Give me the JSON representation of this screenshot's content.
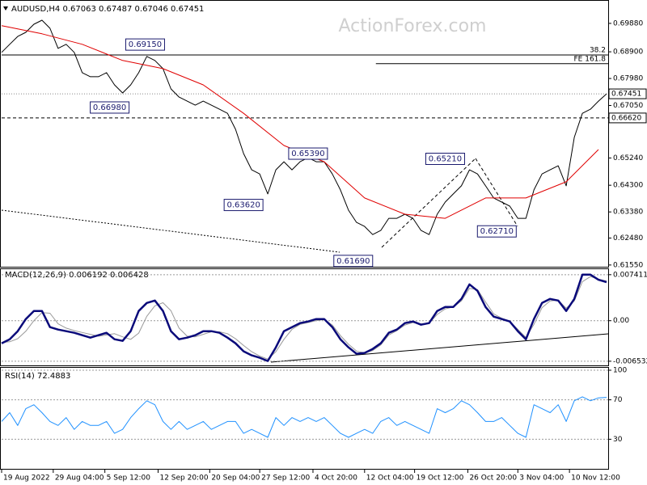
{
  "chart_data": [
    {
      "type": "line",
      "title": "AUDUSD,H4  0.67063 0.67487 0.67046 0.67451",
      "watermark": "ActionForex.com",
      "x": [
        0,
        5,
        10,
        15,
        20,
        25,
        30,
        35,
        40,
        45,
        50,
        55,
        60,
        65,
        70,
        75,
        80,
        85,
        90,
        95,
        100,
        105,
        110,
        115,
        120,
        125,
        130,
        135,
        140,
        145,
        150,
        155,
        160,
        165,
        170,
        175,
        180,
        185,
        190,
        195,
        200,
        205,
        210,
        215,
        220,
        225,
        230,
        235,
        240,
        245,
        250,
        255,
        260,
        265,
        270,
        275,
        280,
        285,
        290,
        295,
        300,
        305,
        310,
        315,
        320,
        325,
        330,
        335,
        340,
        345,
        350,
        355,
        360,
        365,
        370,
        375
      ],
      "xlim": [
        0,
        376
      ],
      "ylim": [
        0.6149,
        0.7063
      ],
      "grid": false,
      "yticks": [
        {
          "value": 0.6988,
          "label": "0.69880"
        },
        {
          "value": 0.689,
          "label": "0.68900"
        },
        {
          "value": 0.6798,
          "label": "0.67980"
        },
        {
          "value": 0.6705,
          "label": "0.67050"
        },
        {
          "value": 0.6524,
          "label": "0.65240"
        },
        {
          "value": 0.643,
          "label": "0.64300"
        },
        {
          "value": 0.6338,
          "label": "0.63380"
        },
        {
          "value": 0.6248,
          "label": "0.62480"
        },
        {
          "value": 0.6155,
          "label": "0.61550"
        }
      ],
      "series": [
        {
          "color": "#000000",
          "width": 1,
          "values": [
            0.6888,
            0.6916,
            0.6943,
            0.6957,
            0.6985,
            0.6999,
            0.6971,
            0.6902,
            0.6916,
            0.6888,
            0.6818,
            0.6804,
            0.6804,
            0.6818,
            0.6776,
            0.6748,
            0.6776,
            0.6818,
            0.6874,
            0.686,
            0.6832,
            0.6762,
            0.6734,
            0.672,
            0.6706,
            0.672,
            0.6706,
            0.6692,
            0.6678,
            0.6623,
            0.6539,
            0.6483,
            0.6469,
            0.64,
            0.6483,
            0.6511,
            0.6483,
            0.6511,
            0.6525,
            0.6511,
            0.6511,
            0.6469,
            0.6414,
            0.6344,
            0.6302,
            0.6288,
            0.626,
            0.6274,
            0.6316,
            0.6316,
            0.633,
            0.6316,
            0.6274,
            0.626,
            0.633,
            0.6372,
            0.64,
            0.6428,
            0.6483,
            0.6469,
            0.6428,
            0.6386,
            0.6372,
            0.6358,
            0.6316,
            0.6316,
            0.6414,
            0.6469,
            0.6483,
            0.6497,
            0.6428,
            0.6595,
            0.6678,
            0.6692,
            0.672,
            0.6745
          ]
        },
        {
          "color": "#e00000",
          "width": 1,
          "x": [
            0,
            25,
            50,
            75,
            100,
            125,
            150,
            175,
            200,
            225,
            250,
            275,
            300,
            325,
            350,
            370
          ],
          "values": [
            0.698,
            0.6952,
            0.6916,
            0.686,
            0.6832,
            0.6776,
            0.6678,
            0.6567,
            0.6511,
            0.6386,
            0.633,
            0.6316,
            0.6386,
            0.6386,
            0.6442,
            0.6553
          ]
        }
      ],
      "levels": [
        {
          "value": 0.6879,
          "label": "38.2",
          "style": "solid"
        },
        {
          "value": 0.6849,
          "label": "FE 161.8",
          "style": "solid",
          "x_start": 232
        },
        {
          "value": 0.67451,
          "label": "0.67451",
          "style": "dotted"
        },
        {
          "value": 0.6662,
          "label": "0.66620",
          "style": "dashed"
        }
      ],
      "annotations": [
        {
          "x": 101,
          "value": 0.6915,
          "label": "0.69150"
        },
        {
          "x": 79,
          "value": 0.6698,
          "label": "0.66980"
        },
        {
          "x": 202,
          "value": 0.6539,
          "label": "0.65390"
        },
        {
          "x": 162,
          "value": 0.6362,
          "label": "0.63620"
        },
        {
          "x": 230,
          "value": 0.6169,
          "label": "0.61690"
        },
        {
          "x": 287,
          "value": 0.6521,
          "label": "0.65210"
        },
        {
          "x": 319,
          "value": 0.6271,
          "label": "0.62710"
        }
      ]
    },
    {
      "type": "line",
      "title": "MACD(12,26,9) 0.006192 0.006428",
      "x": [
        0,
        5,
        10,
        15,
        20,
        25,
        30,
        35,
        40,
        45,
        50,
        55,
        60,
        65,
        70,
        75,
        80,
        85,
        90,
        95,
        100,
        105,
        110,
        115,
        120,
        125,
        130,
        135,
        140,
        145,
        150,
        155,
        160,
        165,
        170,
        175,
        180,
        185,
        190,
        195,
        200,
        205,
        210,
        215,
        220,
        225,
        230,
        235,
        240,
        245,
        250,
        255,
        260,
        265,
        270,
        275,
        280,
        285,
        290,
        295,
        300,
        305,
        310,
        315,
        320,
        325,
        330,
        335,
        340,
        345,
        350,
        355,
        360,
        365,
        370,
        375
      ],
      "xlim": [
        0,
        376
      ],
      "ylim": [
        -0.0072,
        0.0083
      ],
      "grid": true,
      "yticks": [
        0.007411,
        {
          "value": 0,
          "label": "0.00"
        },
        -0.006532
      ],
      "series": [
        {
          "color": "#999999",
          "width": 1,
          "values": [
            -0.0035,
            -0.0034,
            -0.0029,
            -0.0017,
            0.0,
            0.0013,
            0.0012,
            -0.0005,
            -0.0012,
            -0.0016,
            -0.0019,
            -0.0022,
            -0.0025,
            -0.0023,
            -0.0021,
            -0.0026,
            -0.003,
            -0.002,
            0.0007,
            0.0024,
            0.0029,
            0.0016,
            -0.0012,
            -0.0025,
            -0.0026,
            -0.0022,
            -0.0018,
            -0.0018,
            -0.0021,
            -0.0029,
            -0.004,
            -0.005,
            -0.0057,
            -0.0062,
            -0.005,
            -0.003,
            -0.0014,
            -0.0006,
            -0.0003,
            0.0,
            0.0002,
            -0.0007,
            -0.0024,
            -0.0038,
            -0.0049,
            -0.0052,
            -0.0048,
            -0.0039,
            -0.0023,
            -0.0016,
            -0.0007,
            -0.0003,
            -0.0005,
            -0.0004,
            0.001,
            0.0019,
            0.0022,
            0.0032,
            0.0052,
            0.005,
            0.003,
            0.0011,
            0.0004,
            -0.0001,
            -0.0014,
            -0.0027,
            -0.0006,
            0.0021,
            0.0032,
            0.0033,
            0.002,
            0.0032,
            0.0063,
            0.0071,
            0.0067,
            0.0064
          ]
        },
        {
          "color": "#0a0a7a",
          "width": 2.5,
          "values": [
            -0.00364,
            -0.00299,
            -0.00169,
            0.00026,
            0.00156,
            0.00156,
            -0.00104,
            -0.00143,
            -0.00169,
            -0.00195,
            -0.00234,
            -0.00273,
            -0.00234,
            -0.00195,
            -0.00299,
            -0.00325,
            -0.00169,
            0.00156,
            0.00286,
            0.00325,
            0.00156,
            -0.00169,
            -0.00299,
            -0.00273,
            -0.00234,
            -0.00169,
            -0.00169,
            -0.00195,
            -0.00273,
            -0.00364,
            -0.00494,
            -0.00559,
            -0.00598,
            -0.0065,
            -0.00429,
            -0.00169,
            -0.00104,
            -0.00039,
            -0.00013,
            0.00026,
            0.00026,
            -0.00104,
            -0.00299,
            -0.00429,
            -0.00533,
            -0.0052,
            -0.00455,
            -0.00364,
            -0.00195,
            -0.00143,
            -0.00039,
            -0.00013,
            -0.00065,
            -0.00039,
            0.00156,
            0.00221,
            0.00221,
            0.00351,
            0.00585,
            0.00481,
            0.00221,
            0.00065,
            0.00026,
            -0.00013,
            -0.00169,
            -0.00299,
            0.00026,
            0.00286,
            0.00351,
            0.00325,
            0.00156,
            0.00351,
            0.00741,
            0.00741,
            0.0066,
            0.0062
          ]
        }
      ]
    },
    {
      "type": "line",
      "title": "RSI(14) 72.4883",
      "x": [
        0,
        5,
        10,
        15,
        20,
        25,
        30,
        35,
        40,
        45,
        50,
        55,
        60,
        65,
        70,
        75,
        80,
        85,
        90,
        95,
        100,
        105,
        110,
        115,
        120,
        125,
        130,
        135,
        140,
        145,
        150,
        155,
        160,
        165,
        170,
        175,
        180,
        185,
        190,
        195,
        200,
        205,
        210,
        215,
        220,
        225,
        230,
        235,
        240,
        245,
        250,
        255,
        260,
        265,
        270,
        275,
        280,
        285,
        290,
        295,
        300,
        305,
        310,
        315,
        320,
        325,
        330,
        335,
        340,
        345,
        350,
        355,
        360,
        365,
        370,
        375
      ],
      "xlim": [
        0,
        376
      ],
      "ylim": [
        0,
        100
      ],
      "grid": true,
      "yticks": [
        100,
        70,
        30
      ],
      "xticks": [
        {
          "value": 0,
          "label": "19 Aug 2022"
        },
        {
          "value": 32,
          "label": "29 Aug 04:00"
        },
        {
          "value": 64,
          "label": "5 Sep 12:00"
        },
        {
          "value": 97,
          "label": "12 Sep 20:00"
        },
        {
          "value": 129,
          "label": "20 Sep 04:00"
        },
        {
          "value": 160,
          "label": "27 Sep 12:00"
        },
        {
          "value": 193,
          "label": "4 Oct 20:00"
        },
        {
          "value": 225,
          "label": "12 Oct 04:00"
        },
        {
          "value": 256,
          "label": "19 Oct 12:00"
        },
        {
          "value": 289,
          "label": "26 Oct 20:00"
        },
        {
          "value": 320,
          "label": "3 Nov 04:00"
        },
        {
          "value": 352,
          "label": "10 Nov 12:00"
        }
      ],
      "series": [
        {
          "color": "#1e90ff",
          "width": 1,
          "values": [
            48,
            57,
            44,
            61,
            65,
            57,
            48,
            44,
            52,
            40,
            48,
            44,
            44,
            48,
            36,
            40,
            52,
            61,
            69,
            65,
            48,
            40,
            48,
            40,
            44,
            48,
            40,
            44,
            48,
            48,
            36,
            40,
            36,
            32,
            52,
            44,
            52,
            48,
            52,
            48,
            52,
            44,
            36,
            32,
            36,
            40,
            36,
            48,
            52,
            44,
            48,
            44,
            40,
            36,
            61,
            57,
            61,
            69,
            65,
            57,
            48,
            48,
            52,
            44,
            36,
            32,
            65,
            61,
            57,
            65,
            48,
            69,
            73,
            69,
            72,
            72.5
          ]
        }
      ]
    }
  ]
}
